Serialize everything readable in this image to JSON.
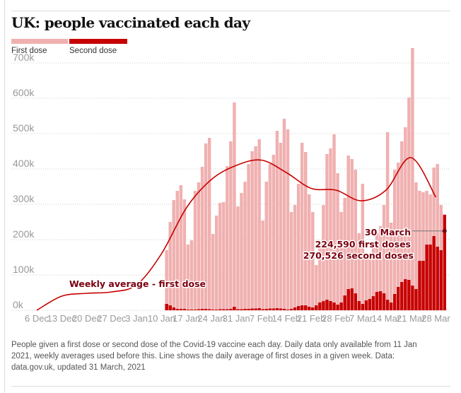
{
  "title": "UK: people vaccinated each day",
  "legend": [
    {
      "label": "First dose",
      "color": "#f0b0b0"
    },
    {
      "label": "Second dose",
      "color": "#c70000"
    }
  ],
  "footer": "People given a first dose or second dose of the Covid-19 vaccine each day. Daily data only available from 11 Jan 2021, weekly averages used before this. Line shows the daily average of first doses in a given week. Data: data.gov.uk, updated 31 March, 2021",
  "chart_data": {
    "type": "bar",
    "title": "UK: people vaccinated each day",
    "xlabel": "",
    "ylabel": "",
    "ylim": [
      0,
      700000
    ],
    "yticks": [
      0,
      100000,
      200000,
      300000,
      400000,
      500000,
      600000,
      700000
    ],
    "ytick_labels": [
      "0k",
      "100k",
      "200k",
      "300k",
      "400k",
      "500k",
      "600k",
      "700k"
    ],
    "x_start": "2020-12-06",
    "x_end": "2021-03-31",
    "xtick_labels": [
      "6 Dec",
      "13 Dec",
      "20 Dec",
      "27 Dec",
      "3 Jan",
      "10 Jan",
      "17 Jan",
      "24 Jan",
      "31 Jan",
      "7 Feb",
      "14 Feb",
      "21 Feb",
      "28 Feb",
      "7 Mar",
      "14 Mar",
      "21 Mar",
      "28 Mar"
    ],
    "grid": true,
    "legend_position": "top-left",
    "daily_start": "2021-01-11",
    "series": [
      {
        "name": "First dose",
        "color": "#f0b0b0",
        "values": [
          170000,
          250000,
          312000,
          338000,
          354000,
          314000,
          186000,
          198000,
          338000,
          362000,
          406000,
          472000,
          488000,
          216000,
          268000,
          304000,
          306000,
          408000,
          478000,
          588000,
          294000,
          332000,
          364000,
          414000,
          450000,
          464000,
          484000,
          254000,
          364000,
          414000,
          440000,
          508000,
          474000,
          542000,
          512000,
          278000,
          298000,
          358000,
          474000,
          448000,
          328000,
          278000,
          128000,
          188000,
          298000,
          442000,
          458000,
          498000,
          388000,
          278000,
          318000,
          438000,
          428000,
          398000,
          218000,
          358000,
          154000,
          162000,
          188000,
          218000,
          238000,
          298000,
          504000,
          248000,
          398000,
          418000,
          478000,
          518000,
          602000,
          742000,
          362000,
          338000,
          334000,
          338000,
          328000,
          404000,
          414000,
          298000,
          224590
        ]
      },
      {
        "name": "Second dose",
        "color": "#c70000",
        "values": [
          18000,
          14000,
          8000,
          4000,
          4000,
          4000,
          2000,
          2000,
          2000,
          3000,
          4000,
          4000,
          3000,
          2000,
          2000,
          3000,
          3000,
          3000,
          4000,
          10000,
          3000,
          3000,
          4000,
          4000,
          5000,
          5000,
          6000,
          3000,
          4000,
          5000,
          5000,
          6000,
          5000,
          4000,
          2000,
          4000,
          8000,
          12000,
          14000,
          14000,
          10000,
          8000,
          14000,
          22000,
          26000,
          30000,
          26000,
          22000,
          16000,
          22000,
          42000,
          60000,
          62000,
          48000,
          26000,
          18000,
          28000,
          32000,
          40000,
          52000,
          54000,
          48000,
          30000,
          22000,
          46000,
          66000,
          80000,
          88000,
          86000,
          70000,
          60000,
          140000,
          140000,
          186000,
          186000,
          210000,
          180000,
          170000,
          270526
        ]
      }
    ],
    "line": {
      "name": "Weekly average - first dose",
      "color": "#c70000",
      "points": [
        {
          "date": "2020-12-06",
          "value": 0
        },
        {
          "date": "2020-12-13",
          "value": 40000
        },
        {
          "date": "2020-12-20",
          "value": 48000
        },
        {
          "date": "2020-12-27",
          "value": 52000
        },
        {
          "date": "2021-01-03",
          "value": 72000
        },
        {
          "date": "2021-01-10",
          "value": 160000
        },
        {
          "date": "2021-01-17",
          "value": 290000
        },
        {
          "date": "2021-01-24",
          "value": 370000
        },
        {
          "date": "2021-01-31",
          "value": 410000
        },
        {
          "date": "2021-02-07",
          "value": 425000
        },
        {
          "date": "2021-02-14",
          "value": 390000
        },
        {
          "date": "2021-02-21",
          "value": 345000
        },
        {
          "date": "2021-02-28",
          "value": 340000
        },
        {
          "date": "2021-03-07",
          "value": 310000
        },
        {
          "date": "2021-03-14",
          "value": 340000
        },
        {
          "date": "2021-03-21",
          "value": 432000
        },
        {
          "date": "2021-03-28",
          "value": 320000
        }
      ]
    },
    "annotations": [
      {
        "text": "Weekly average - first dose"
      },
      {
        "text": "30 March",
        "date": "2021-03-30"
      },
      {
        "text": "224,590 first doses"
      },
      {
        "text": "270,526 second doses"
      }
    ]
  }
}
